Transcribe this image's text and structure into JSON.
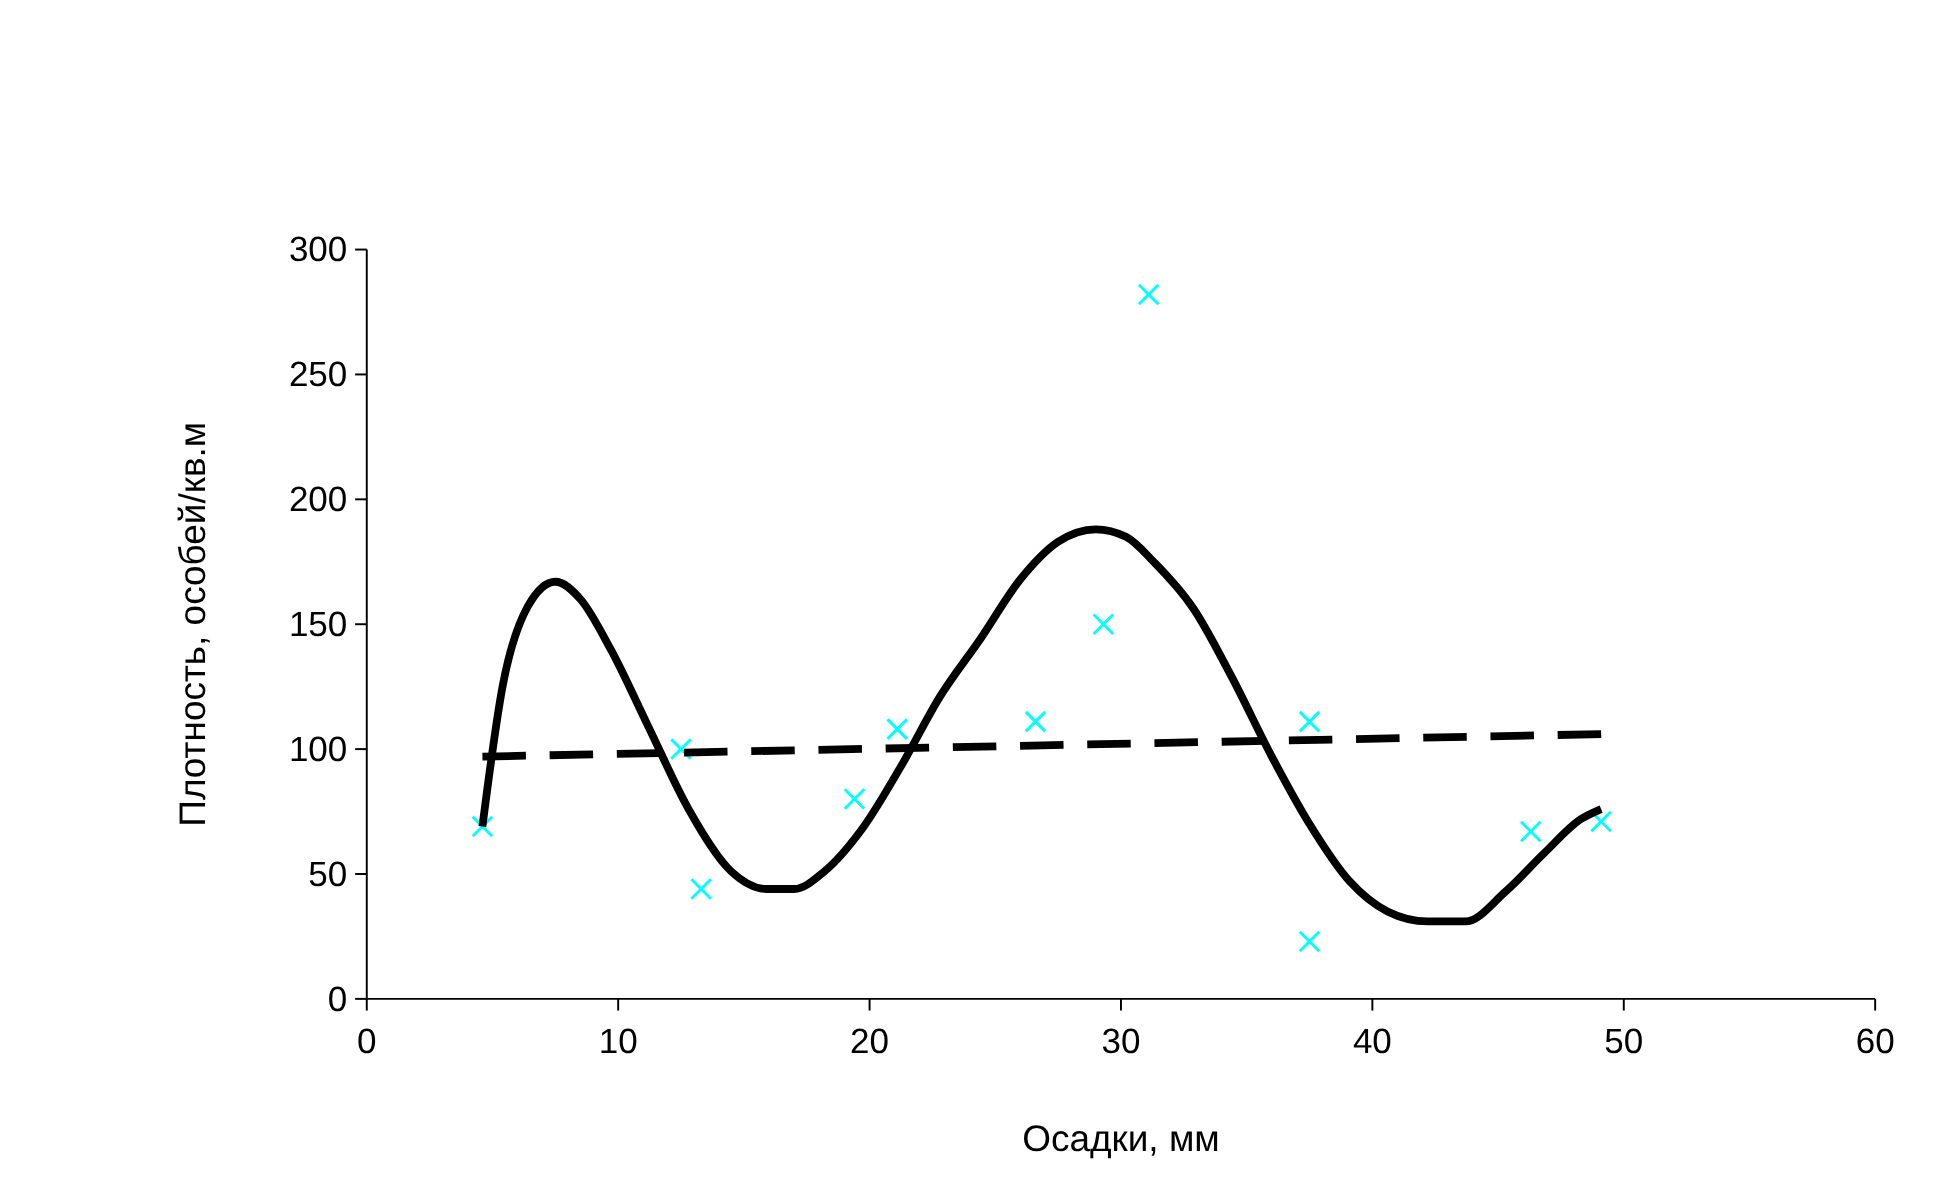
{
  "chart_data": {
    "type": "scatter",
    "xlabel": "Осадки, мм",
    "ylabel": "Плотность, особей/кв.м",
    "xlim": [
      0,
      60
    ],
    "ylim": [
      0,
      300
    ],
    "xticks": [
      0,
      10,
      20,
      30,
      40,
      50,
      60
    ],
    "yticks": [
      0,
      50,
      100,
      150,
      200,
      250,
      300
    ],
    "grid": false,
    "series": [
      {
        "color": "#00ffff",
        "marker": "cross",
        "x": [
          4.6,
          12.5,
          13.3,
          19.4,
          21.1,
          26.6,
          29.3,
          31.1,
          37.5,
          37.5,
          46.3,
          49.1
        ],
        "values": [
          69,
          100,
          44,
          80,
          108,
          111,
          150,
          282,
          111,
          23,
          67,
          71
        ]
      },
      {
        "type": "line",
        "color": "#000000",
        "marker": "none",
        "line_style": "solid",
        "x": [
          4.6,
          5.4,
          6.4,
          7.5,
          8.5,
          9.7,
          11.2,
          12.8,
          14.5,
          15.9,
          17.0,
          18.2,
          19.7,
          21.3,
          22.8,
          24.4,
          26.0,
          27.5,
          29.0,
          30.2,
          31.3,
          32.9,
          34.4,
          36.0,
          37.5,
          39.1,
          40.6,
          42.2,
          43.7,
          45.3,
          46.8,
          48.3,
          49.1
        ],
        "values": [
          69,
          125,
          157,
          167,
          160,
          140,
          109,
          76,
          51,
          44,
          44,
          51,
          68,
          94,
          121,
          144,
          168,
          183,
          188,
          185,
          175,
          156,
          129,
          97,
          70,
          47,
          35,
          31,
          31,
          43,
          58,
          72,
          76
        ]
      },
      {
        "type": "line",
        "color": "#000000",
        "marker": "none",
        "line_style": "dashed",
        "x": [
          4.6,
          49.1
        ],
        "values": [
          97,
          106
        ]
      }
    ]
  }
}
